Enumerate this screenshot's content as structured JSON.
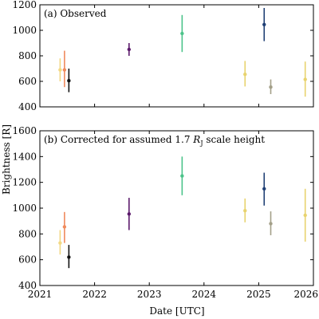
{
  "chart_data": [
    {
      "type": "scatter",
      "title": "(a) Observed",
      "title_lead": "",
      "title_tail": "",
      "xlabel": "Date [UTC]",
      "ylabel": "Brightness [R]",
      "xlim": [
        2021,
        2026
      ],
      "ylim": [
        400,
        1200
      ],
      "yticks": [
        400,
        600,
        800,
        1000,
        1200
      ],
      "xticks": [
        2021,
        2022,
        2023,
        2024,
        2025,
        2026
      ],
      "grid": false,
      "points": [
        {
          "x": 2021.37,
          "y": 690,
          "err": [
            600,
            780
          ],
          "color": "#f2d883"
        },
        {
          "x": 2021.45,
          "y": 690,
          "err": [
            555,
            840
          ],
          "color": "#f08a5c"
        },
        {
          "x": 2021.53,
          "y": 605,
          "err": [
            515,
            700
          ],
          "color": "#111111"
        },
        {
          "x": 2022.63,
          "y": 850,
          "err": [
            800,
            900
          ],
          "color": "#5b1a6b"
        },
        {
          "x": 2023.6,
          "y": 975,
          "err": [
            830,
            1120
          ],
          "color": "#4cc38a"
        },
        {
          "x": 2025.1,
          "y": 1045,
          "err": [
            915,
            1175
          ],
          "color": "#1f3f75"
        },
        {
          "x": 2024.75,
          "y": 655,
          "err": [
            560,
            760
          ],
          "color": "#e8d36e"
        },
        {
          "x": 2025.22,
          "y": 555,
          "err": [
            500,
            615
          ],
          "color": "#a39f88"
        },
        {
          "x": 2025.85,
          "y": 615,
          "err": [
            480,
            755
          ],
          "color": "#e8d36e"
        }
      ]
    },
    {
      "type": "scatter",
      "title": "",
      "title_lead": "(b) Corrected for assumed 1.7 ",
      "title_symbol": "R",
      "title_subscript": "J",
      "title_tail": " scale height",
      "xlabel": "Date [UTC]",
      "ylabel": "Brightness [R]",
      "xlim": [
        2021,
        2026
      ],
      "ylim": [
        400,
        1600
      ],
      "yticks": [
        400,
        600,
        800,
        1000,
        1200,
        1400,
        1600
      ],
      "xticks": [
        2021,
        2022,
        2023,
        2024,
        2025,
        2026
      ],
      "grid": false,
      "points": [
        {
          "x": 2021.37,
          "y": 730,
          "err": [
            640,
            830
          ],
          "color": "#f2d883"
        },
        {
          "x": 2021.45,
          "y": 855,
          "err": [
            730,
            970
          ],
          "color": "#f08a5c"
        },
        {
          "x": 2021.53,
          "y": 620,
          "err": [
            535,
            715
          ],
          "color": "#111111"
        },
        {
          "x": 2022.63,
          "y": 955,
          "err": [
            830,
            1080
          ],
          "color": "#5b1a6b"
        },
        {
          "x": 2023.6,
          "y": 1250,
          "err": [
            1100,
            1400
          ],
          "color": "#4cc38a"
        },
        {
          "x": 2025.1,
          "y": 1150,
          "err": [
            1020,
            1275
          ],
          "color": "#1f3f75"
        },
        {
          "x": 2024.75,
          "y": 980,
          "err": [
            890,
            1075
          ],
          "color": "#e8d36e"
        },
        {
          "x": 2025.22,
          "y": 880,
          "err": [
            790,
            975
          ],
          "color": "#a39f88"
        },
        {
          "x": 2025.85,
          "y": 945,
          "err": [
            740,
            1150
          ],
          "color": "#e8d36e"
        }
      ]
    }
  ]
}
